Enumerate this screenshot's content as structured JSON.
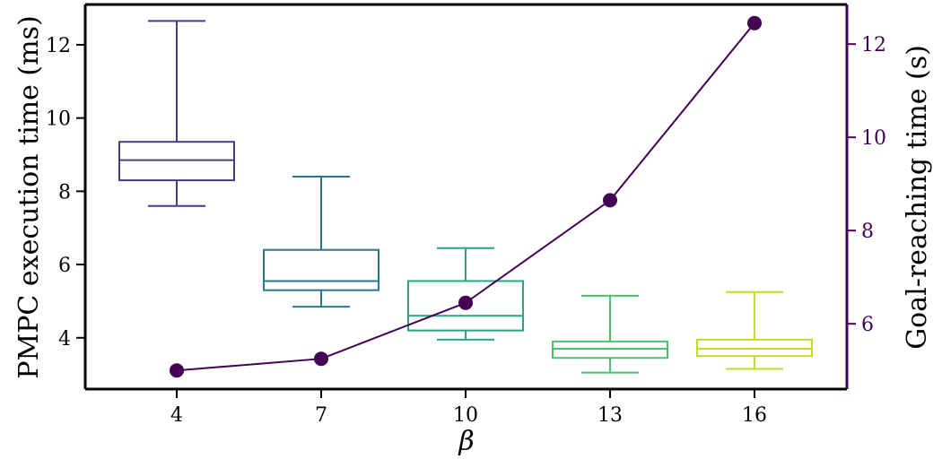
{
  "chart_data": {
    "type": "box+line",
    "categories": [
      "4",
      "7",
      "10",
      "13",
      "16"
    ],
    "xlabel": "β",
    "ylabel_left": "PMPC execution time (ms)",
    "ylabel_right": "Goal-reaching time (s)",
    "ylim_left": [
      2.6,
      13.1
    ],
    "ylim_right": [
      4.6,
      12.85
    ],
    "yticks_left": [
      4,
      6,
      8,
      10,
      12
    ],
    "yticks_right": [
      6,
      8,
      10,
      12
    ],
    "grid": false,
    "boxes": [
      {
        "category": "4",
        "whisker_low": 7.6,
        "q1": 8.3,
        "median": 8.85,
        "q3": 9.35,
        "whisker_high": 12.65,
        "color": "#433e85"
      },
      {
        "category": "7",
        "whisker_low": 4.85,
        "q1": 5.3,
        "median": 5.55,
        "q3": 6.4,
        "whisker_high": 8.4,
        "color": "#2a788e"
      },
      {
        "category": "10",
        "whisker_low": 3.95,
        "q1": 4.2,
        "median": 4.6,
        "q3": 5.55,
        "whisker_high": 6.45,
        "color": "#22a884"
      },
      {
        "category": "13",
        "whisker_low": 3.05,
        "q1": 3.45,
        "median": 3.7,
        "q3": 3.9,
        "whisker_high": 5.15,
        "color": "#4ac16d"
      },
      {
        "category": "16",
        "whisker_low": 3.15,
        "q1": 3.5,
        "median": 3.7,
        "q3": 3.95,
        "whisker_high": 5.25,
        "color": "#bddf26"
      }
    ],
    "series": [
      {
        "axis": "right",
        "values": [
          5.0,
          5.25,
          6.45,
          8.65,
          12.45
        ],
        "color": "#440154"
      }
    ]
  }
}
